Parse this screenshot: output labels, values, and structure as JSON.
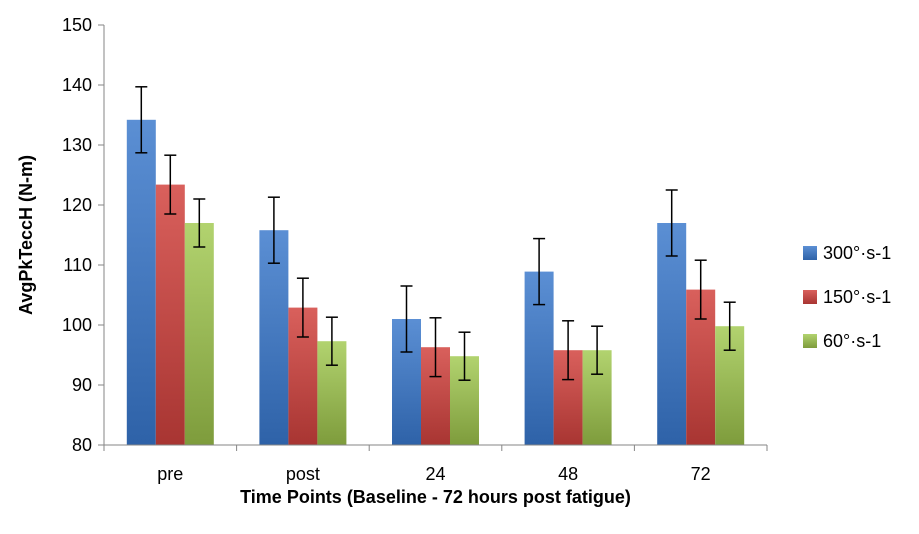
{
  "chart_data": {
    "type": "bar",
    "title": "",
    "xlabel": "Time Points (Baseline - 72 hours post fatigue)",
    "ylabel": "AvgPkTeccH (N-m)",
    "ylim": [
      80,
      150
    ],
    "yticks": [
      80,
      90,
      100,
      110,
      120,
      130,
      140,
      150
    ],
    "categories": [
      "pre",
      "post",
      "24",
      "48",
      "72"
    ],
    "grid": false,
    "legend_position": "right",
    "series": [
      {
        "name": "300°·s-1",
        "color": "#4a7ebb",
        "values": [
          134.2,
          115.8,
          101.0,
          108.9,
          117.0
        ],
        "errors": [
          5.5,
          5.5,
          5.5,
          5.5,
          5.5
        ]
      },
      {
        "name": "150°·s-1",
        "color": "#c0504d",
        "values": [
          123.4,
          102.9,
          96.3,
          95.8,
          105.9
        ],
        "errors": [
          4.9,
          4.9,
          4.9,
          4.9,
          4.9
        ]
      },
      {
        "name": "60°·s-1",
        "color": "#9bbb59",
        "values": [
          117.0,
          97.3,
          94.8,
          95.8,
          99.8
        ],
        "errors": [
          4.0,
          4.0,
          4.0,
          4.0,
          4.0
        ]
      }
    ]
  }
}
